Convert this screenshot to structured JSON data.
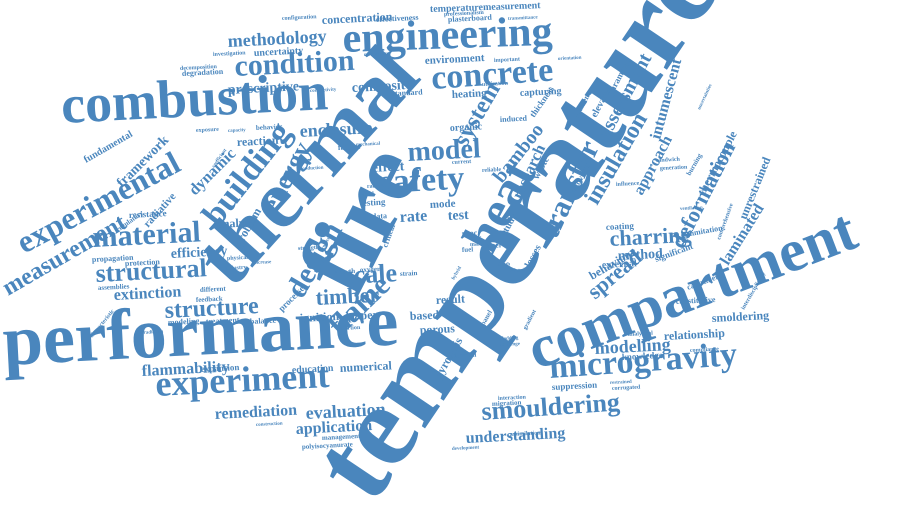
{
  "word_color": "#4a86bd",
  "background_color": "#ffffff",
  "words": {
    "temperature": "temperature",
    "thermal": "thermal",
    "fire": "fire",
    "performance": "performance",
    "compartment": "compartment",
    "combustion": "combustion",
    "engineering": "engineering",
    "experiment": "experiment",
    "heat": "heat",
    "safety": "safety",
    "microgravity": "microgravity",
    "experimental": "experimental",
    "building": "building",
    "concrete": "concrete",
    "condition": "condition",
    "design": "design",
    "material": "material",
    "measurement": "measurement",
    "smouldering": "smouldering",
    "structural": "structural",
    "transfer": "transfer",
    "flame": "flame",
    "model": "model",
    "structure": "structure",
    "energy": "energy",
    "system": "system",
    "insulation": "insulation",
    "deformation": "deformation",
    "assessment": "assessment",
    "spread": "spread",
    "charring": "charring",
    "scale": "scale",
    "timber": "timber",
    "methodology": "methodology",
    "enclosure": "enclosure",
    "flammability": "flammability",
    "remediation": "remediation",
    "evaluation": "evaluation",
    "application": "application",
    "understanding": "understanding",
    "modelling": "modelling",
    "method": "method",
    "approach": "approach",
    "intumescent": "intumescent",
    "laminated": "laminated",
    "bamboo": "bamboo",
    "research": "research",
    "dynamic": "dynamic",
    "extinction": "extinction",
    "efficiency": "efficiency",
    "prescriptive": "prescriptive",
    "composite": "composite",
    "concentration": "concentration",
    "environment": "environment",
    "uncertainty": "uncertainty",
    "investigation": "investigation",
    "decomposition": "decomposition",
    "degradation": "degradation",
    "framework": "framework",
    "fundamental": "fundamental",
    "radiative": "radiative",
    "resistance": "resistance",
    "regulatory": "regulatory",
    "propagation": "propagation",
    "protection": "protection",
    "assemblies": "assemblies",
    "different": "different",
    "feedback": "feedback",
    "modeling": "modeling",
    "treatment": "treatment",
    "balance": "balance",
    "expansion": "expansion",
    "education": "education",
    "numerical": "numerical",
    "ignition": "ignition",
    "paper": "paper",
    "porous": "porous",
    "based": "based",
    "result": "result",
    "analysis": "analysis",
    "reaction": "reaction",
    "problem": "problem",
    "rate": "rate",
    "test": "test",
    "effect": "effect",
    "testing": "testing",
    "data": "data",
    "critical": "critical",
    "heating": "heating",
    "capturing": "capturing",
    "thickness": "thickness",
    "induced": "induced",
    "organic": "organic",
    "waste": "waste",
    "recovery": "recovery",
    "elevated": "elevated",
    "incident": "incident",
    "parameter": "parameter",
    "orientation": "orientation",
    "plasterboard": "plasterboard",
    "effectiveness": "effectiveness",
    "professionalism": "professionalism",
    "configuration": "configuration",
    "transmittance": "transmittance",
    "temperaturemeasurement": "temperaturemeasurement",
    "standard": "standard",
    "important": "important",
    "utilization": "utilization",
    "mechanism": "mechanism",
    "conductivity": "conductivity",
    "behavior": "behavior",
    "capacity": "capacity",
    "exposure": "exposure",
    "coefficient": "coefficient",
    "failure": "failure",
    "current": "current",
    "reliable": "reliable",
    "mode": "mode",
    "physical": "physical",
    "industry": "industry",
    "increase": "increase",
    "process": "process",
    "processes": "processes",
    "growth": "growth",
    "oxygen": "oxygen",
    "strength": "strength",
    "strain": "strain",
    "inertion": "inertion",
    "hybrid": "hybrid",
    "steel": "steel",
    "risk": "risk",
    "fuel": "fuel",
    "losses": "losses",
    "external": "external",
    "significant": "significant",
    "behaviour": "behaviour",
    "constitutive": "constitutive",
    "relationship": "relationship",
    "smoldering": "smoldering",
    "knowledge": "knowledge",
    "compliance": "compliance",
    "analytical": "analytical",
    "suppression": "suppression",
    "corrugated": "corrugated",
    "construction": "construction",
    "migration": "migration",
    "interaction": "interaction",
    "assimilation": "assimilation",
    "development": "development",
    "management": "management",
    "polyisocyanurate": "polyisocyanurate",
    "cladding": "cladding",
    "challenge": "challenge",
    "potential": "potential",
    "pyrolysis": "pyrolysis",
    "panel": "panel",
    "coating": "coating",
    "limitation": "limitation",
    "calorimeter": "calorimeter",
    "unrestrained": "unrestrained",
    "thermocouple": "thermocouple",
    "influence": "influence",
    "ventilation": "ventilation",
    "sandwich": "sandwich",
    "generation": "generation",
    "burning": "burning",
    "uncertainties": "uncertainties",
    "interdisciplinary": "interdisciplinary",
    "comprehensive": "comprehensive",
    "gradient": "gradient",
    "restrained": "restrained",
    "characteristic": "characteristic",
    "irradiation": "irradiation",
    "related": "related",
    "depth": "depth",
    "study": "study",
    "proc": "proc",
    "max": "max",
    "mechanical": "mechanical",
    "conduction": "conduction",
    "solid": "solid",
    "radiant": "radiant"
  }
}
